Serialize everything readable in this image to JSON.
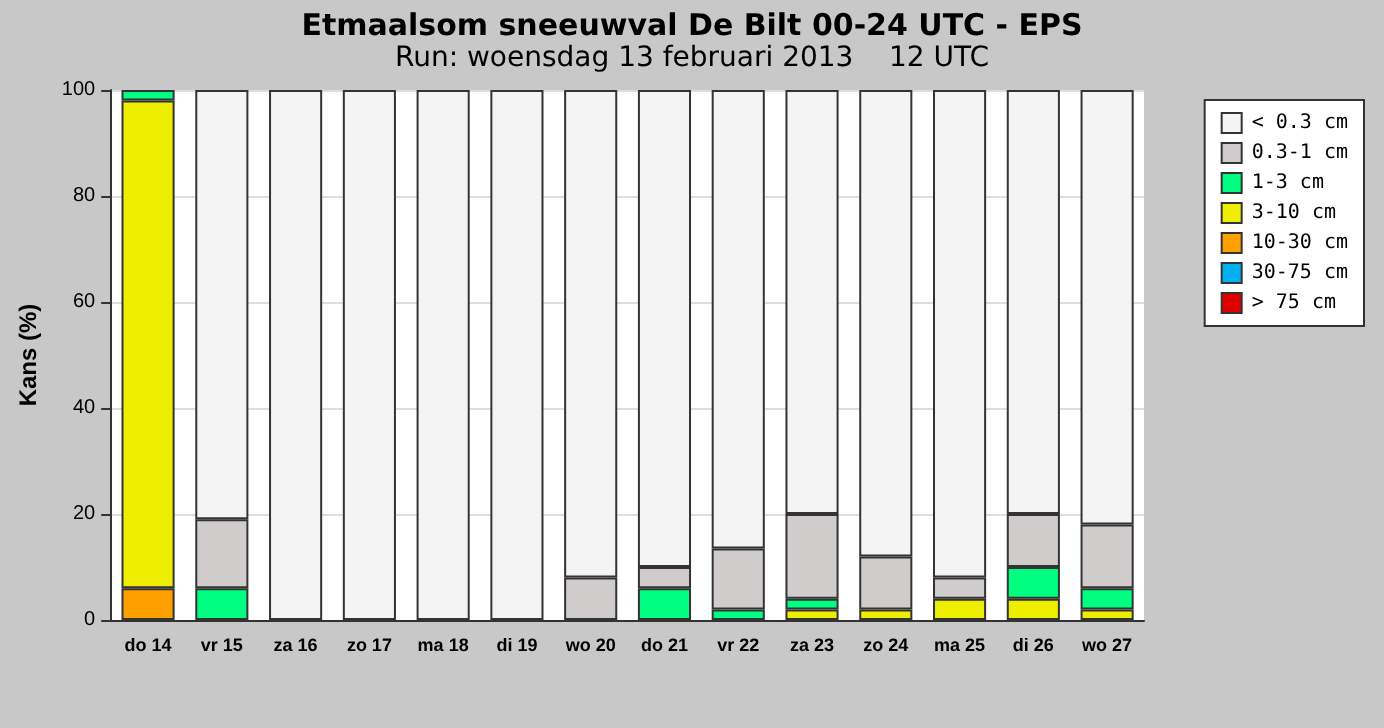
{
  "chart_data": {
    "type": "bar",
    "title": "Etmaalsom sneeuwval De Bilt 00-24 UTC - EPS",
    "subtitle": "Run: woensdag 13 februari 2013    12 UTC",
    "ylabel": "Kans (%)",
    "categories": [
      "do 14",
      "vr 15",
      "za 16",
      "zo 17",
      "ma 18",
      "di 19",
      "wo 20",
      "do 21",
      "vr 22",
      "za 23",
      "zo 24",
      "ma 25",
      "di 26",
      "wo 27"
    ],
    "stacked": true,
    "ylim": [
      0,
      100
    ],
    "yticks": [
      0,
      20,
      40,
      60,
      80,
      100
    ],
    "grid": "y",
    "legend": "right",
    "series": [
      {
        "name": "> 75 cm",
        "color": "#e00000",
        "values": [
          0,
          0,
          0,
          0,
          0,
          0,
          0,
          0,
          0,
          0,
          0,
          0,
          0,
          0
        ]
      },
      {
        "name": "30-75 cm",
        "color": "#00b0f0",
        "values": [
          0,
          0,
          0,
          0,
          0,
          0,
          0,
          0,
          0,
          0,
          0,
          0,
          0,
          0
        ]
      },
      {
        "name": "10-30 cm",
        "color": "#ffa000",
        "values": [
          6,
          0,
          0,
          0,
          0,
          0,
          0,
          0,
          0,
          0,
          0,
          0,
          0,
          0
        ]
      },
      {
        "name": "3-10 cm",
        "color": "#eeee00",
        "values": [
          92,
          0,
          0,
          0,
          0,
          0,
          0,
          0,
          0,
          2,
          2,
          4,
          4,
          2
        ]
      },
      {
        "name": "1-3 cm",
        "color": "#00ff80",
        "values": [
          2,
          6,
          0,
          0,
          0,
          0,
          0,
          6,
          2,
          2,
          0,
          0,
          6,
          4
        ]
      },
      {
        "name": "0.3-1 cm",
        "color": "#d0cccc",
        "values": [
          0,
          13,
          0,
          0,
          0,
          0,
          8,
          4,
          11.5,
          16,
          10,
          4,
          10,
          12
        ]
      },
      {
        "name": "< 0.3 cm",
        "color": "#f4f4f4",
        "values": [
          0,
          81,
          100,
          100,
          100,
          100,
          92,
          90,
          86.5,
          80,
          88,
          92,
          80,
          82
        ]
      }
    ]
  }
}
